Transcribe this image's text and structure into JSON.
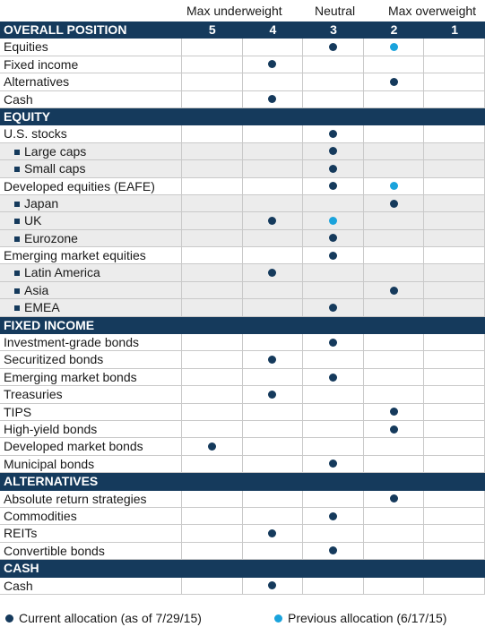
{
  "header": {
    "underweight": "Max underweight",
    "neutral": "Neutral",
    "overweight": "Max overweight"
  },
  "colors": {
    "current": "#153a5c",
    "previous": "#1aa3dc",
    "section": "#153a5c"
  },
  "legend": {
    "current": "Current allocation (as of 7/29/15)",
    "previous": "Previous allocation (6/17/15)"
  },
  "chart_data": {
    "type": "table",
    "columns": [
      "5",
      "4",
      "3",
      "2",
      "1"
    ],
    "rows": [
      {
        "kind": "section",
        "label": "OVERALL POSITION",
        "show_columns": true
      },
      {
        "kind": "item",
        "label": "Equities",
        "current": "3",
        "previous": "2"
      },
      {
        "kind": "item",
        "label": "Fixed income",
        "current": "4"
      },
      {
        "kind": "item",
        "label": "Alternatives",
        "current": "2"
      },
      {
        "kind": "item",
        "label": "Cash",
        "current": "4"
      },
      {
        "kind": "section",
        "label": "EQUITY"
      },
      {
        "kind": "item",
        "label": "U.S. stocks",
        "current": "3"
      },
      {
        "kind": "sub",
        "label": "Large caps",
        "current": "3"
      },
      {
        "kind": "sub",
        "label": "Small caps",
        "current": "3"
      },
      {
        "kind": "item",
        "label": "Developed equities (EAFE)",
        "current": "3",
        "previous": "2"
      },
      {
        "kind": "sub",
        "label": "Japan",
        "current": "2"
      },
      {
        "kind": "sub",
        "label": "UK",
        "current": "4",
        "previous": "3"
      },
      {
        "kind": "sub",
        "label": "Eurozone",
        "current": "3"
      },
      {
        "kind": "item",
        "label": "Emerging market equities",
        "current": "3"
      },
      {
        "kind": "sub",
        "label": "Latin America",
        "current": "4"
      },
      {
        "kind": "sub",
        "label": "Asia",
        "current": "2"
      },
      {
        "kind": "sub",
        "label": "EMEA",
        "current": "3"
      },
      {
        "kind": "section",
        "label": "FIXED INCOME"
      },
      {
        "kind": "item",
        "label": "Investment-grade bonds",
        "current": "3"
      },
      {
        "kind": "item",
        "label": "Securitized bonds",
        "current": "4"
      },
      {
        "kind": "item",
        "label": "Emerging market bonds",
        "current": "3"
      },
      {
        "kind": "item",
        "label": "Treasuries",
        "current": "4"
      },
      {
        "kind": "item",
        "label": "TIPS",
        "current": "2"
      },
      {
        "kind": "item",
        "label": "High-yield bonds",
        "current": "2"
      },
      {
        "kind": "item",
        "label": "Developed market bonds",
        "current": "5"
      },
      {
        "kind": "item",
        "label": "Municipal bonds",
        "current": "3"
      },
      {
        "kind": "section",
        "label": "ALTERNATIVES"
      },
      {
        "kind": "item",
        "label": "Absolute return strategies",
        "current": "2"
      },
      {
        "kind": "item",
        "label": "Commodities",
        "current": "3"
      },
      {
        "kind": "item",
        "label": "REITs",
        "current": "4"
      },
      {
        "kind": "item",
        "label": "Convertible bonds",
        "current": "3"
      },
      {
        "kind": "section",
        "label": "CASH"
      },
      {
        "kind": "item",
        "label": "Cash",
        "current": "4"
      }
    ]
  }
}
